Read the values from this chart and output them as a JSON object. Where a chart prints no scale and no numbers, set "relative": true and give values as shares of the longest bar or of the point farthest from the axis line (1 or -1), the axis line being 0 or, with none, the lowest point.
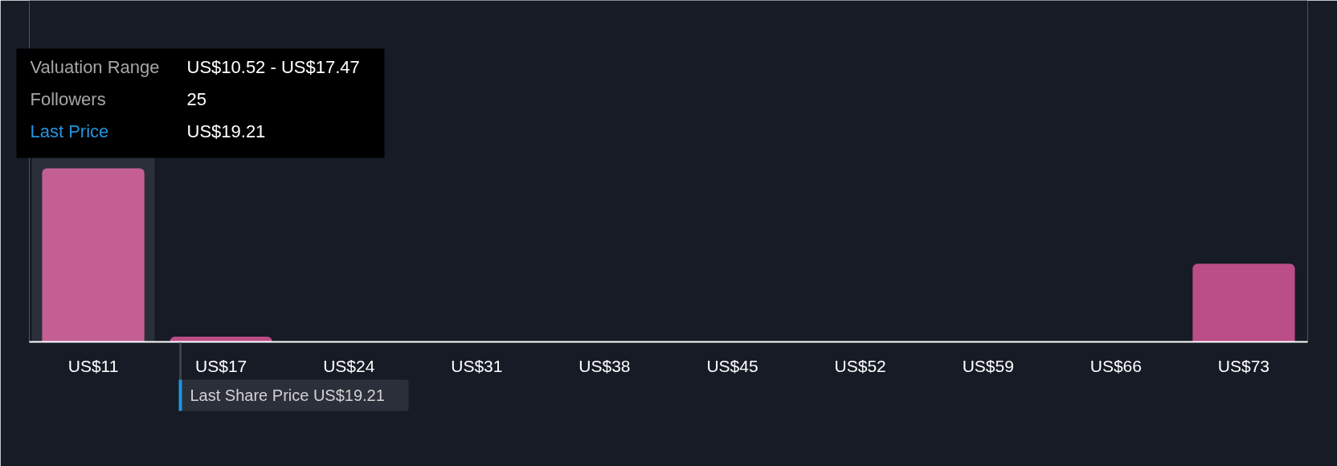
{
  "chart_data": {
    "type": "bar",
    "relative": true,
    "categories": [
      "US$11",
      "US$17",
      "US$24",
      "US$31",
      "US$38",
      "US$45",
      "US$52",
      "US$59",
      "US$66",
      "US$73"
    ],
    "values": [
      1,
      0.03,
      0,
      0,
      0,
      0,
      0,
      0,
      0,
      0.45
    ],
    "colors": [
      "#c45f94",
      "#bb4d87",
      "#bb4d87",
      "#bb4d87",
      "#bb4d87",
      "#bb4d87",
      "#bb4d87",
      "#bb4d87",
      "#bb4d87",
      "#bb4d87"
    ],
    "bands": [
      {
        "axis": "x",
        "from": "US$11",
        "to": "US$11",
        "color": "#2b2f3a"
      }
    ],
    "annotations": [
      "Valuation Range",
      "US$10.52 - US$17.47",
      "Followers",
      "25",
      "Last Price",
      "US$19.21",
      "Last Share Price US$19.21"
    ]
  }
}
